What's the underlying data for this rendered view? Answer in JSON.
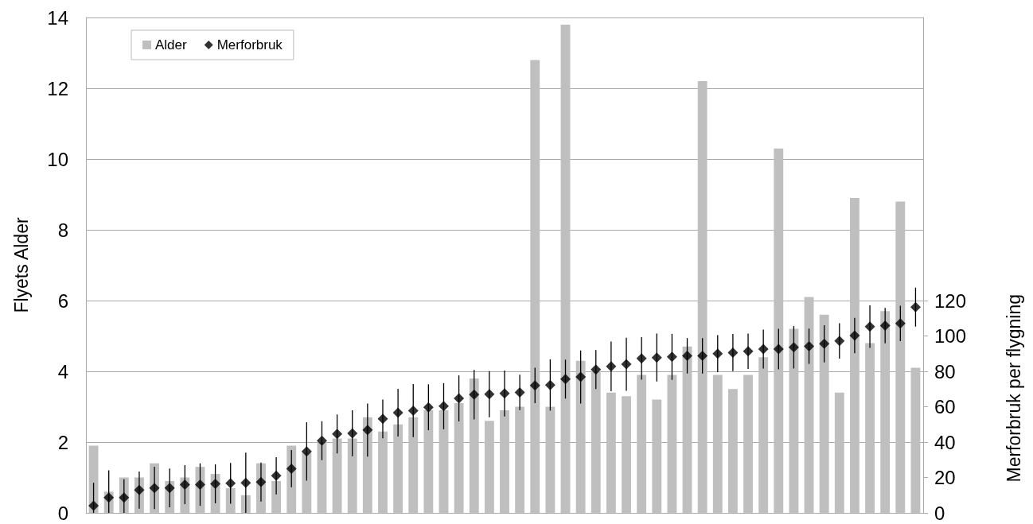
{
  "chart_data": {
    "type": "bar",
    "ylabel": "Flyets Alder",
    "y2label": "Merforbruk per flygning",
    "categories": [
      null,
      null,
      null,
      null,
      null,
      null,
      null,
      null,
      null,
      null,
      null,
      null,
      null,
      null,
      null,
      null,
      null,
      null,
      null,
      null,
      null,
      null,
      null,
      null,
      null,
      null,
      null,
      null,
      null,
      null,
      null,
      null,
      null,
      null,
      null,
      null,
      null,
      null,
      null,
      null,
      null,
      null,
      null,
      null,
      null,
      null,
      null,
      null,
      null,
      null,
      null,
      null,
      null,
      null,
      null
    ],
    "series": [
      {
        "name": "Alder",
        "color": "#bfbfbf",
        "values": [
          1.9,
          0.6,
          1.0,
          1.0,
          1.4,
          0.9,
          1.0,
          1.3,
          1.1,
          0.7,
          0.5,
          1.4,
          0.9,
          1.9,
          1.7,
          2.0,
          2.1,
          2.1,
          2.7,
          2.3,
          2.5,
          2.7,
          2.9,
          2.9,
          3.1,
          3.8,
          2.6,
          2.9,
          3.0,
          12.8,
          3.0,
          13.8,
          4.3,
          4.0,
          3.4,
          3.3,
          3.9,
          3.2,
          3.9,
          4.7,
          12.2,
          3.9,
          3.5,
          3.9,
          4.4,
          10.3,
          5.2,
          6.1,
          5.6,
          3.4,
          8.9,
          4.8,
          5.7,
          8.8,
          4.1
        ]
      },
      {
        "name": "Merforbruk",
        "type": "scatter",
        "axis": "y2",
        "color": "#000000",
        "values": [
          4,
          8.6,
          8.6,
          12.9,
          14.1,
          14.1,
          16,
          16,
          16.4,
          16.7,
          17,
          17.4,
          21,
          25,
          34.7,
          40.8,
          44.6,
          45,
          46.8,
          53.1,
          56.6,
          57.8,
          59.7,
          60.3,
          64.7,
          66.8,
          67.1,
          67.5,
          68.1,
          72,
          72.3,
          75.6,
          76.8,
          81,
          82.8,
          84,
          87.3,
          87.8,
          88.2,
          88.8,
          88.8,
          90,
          90.6,
          91.4,
          92.6,
          92.6,
          93.6,
          94.2,
          95.6,
          97.2,
          100.2,
          105.3,
          105.8,
          107.1,
          116.3
        ],
        "errors": [
          [
            0,
            17
          ],
          [
            0,
            24
          ],
          [
            0,
            19
          ],
          10.5,
          12,
          11,
          11,
          12,
          11,
          11.5,
          17,
          11,
          10.5,
          10.5,
          16.5,
          11,
          11,
          13,
          15,
          11,
          13.5,
          15,
          13,
          13,
          13,
          14,
          13,
          13,
          10,
          10,
          14.5,
          11,
          15,
          11,
          14,
          15,
          12,
          13.5,
          13,
          10,
          10,
          10.5,
          10.5,
          10,
          11,
          11.5,
          12,
          10,
          10.5,
          10,
          10,
          12,
          10,
          10,
          11
        ]
      }
    ],
    "ylim": [
      0,
      14
    ],
    "yticks": [
      0,
      2,
      4,
      6,
      8,
      10,
      12,
      14
    ],
    "y2lim": [
      0,
      280
    ],
    "y2ticks": [
      0,
      20,
      40,
      60,
      80,
      100,
      120
    ],
    "grid": "y",
    "legend": "top left",
    "marker": "diamond"
  }
}
